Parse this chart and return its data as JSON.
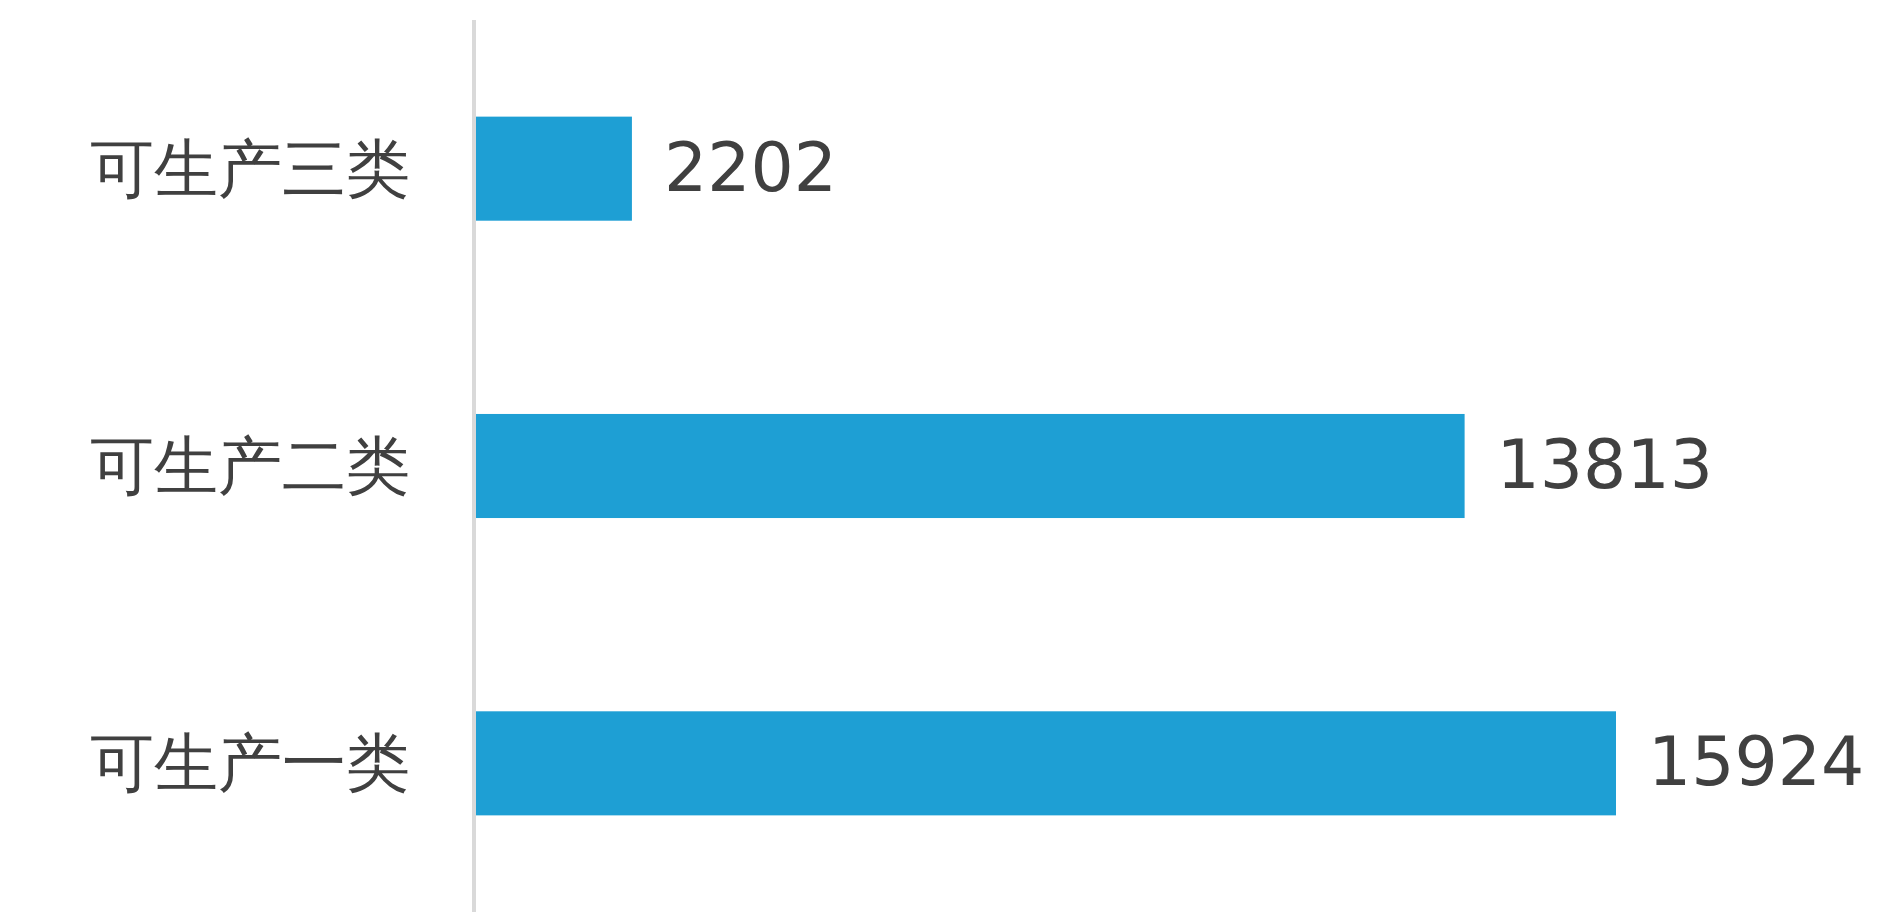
{
  "chart_data": {
    "type": "bar",
    "orientation": "horizontal",
    "categories": [
      "可生产三类",
      "可生产二类",
      "可生产一类"
    ],
    "values": [
      2202,
      13813,
      15924
    ],
    "color": "#1e9fd4",
    "data_labels": true
  }
}
